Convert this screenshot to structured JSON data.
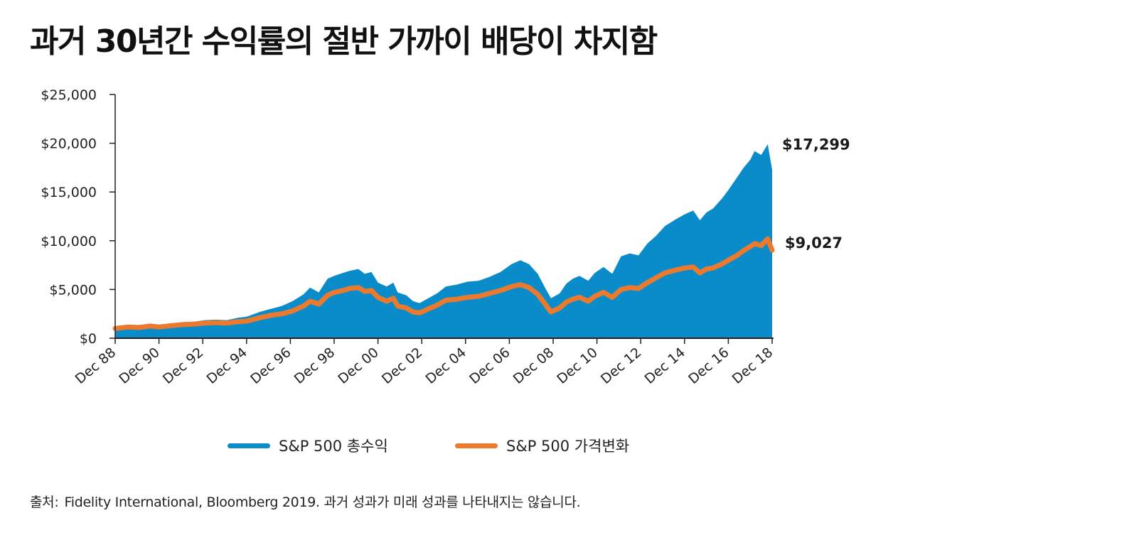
{
  "title": "과거 30년간 수익률의 절반 가까이 배당이 차지함",
  "source": {
    "label": "출처:",
    "text": "Fidelity International, Bloomberg 2019. 과거 성과가 미래 성과를 나타내지는 않습니다."
  },
  "colors": {
    "total": "#0a8ccb",
    "price": "#ec7a2e",
    "axis": "#222222",
    "text": "#222222"
  },
  "chart_data": {
    "type": "area",
    "title": "과거 30년간 수익률의 절반 가까이 배당이 차지함",
    "xlabel": "",
    "ylabel": "",
    "xlim": [
      1988.9,
      2018.9
    ],
    "ylim": [
      0,
      25000
    ],
    "grid": false,
    "legend_position": "bottom",
    "y_ticks": [
      0,
      5000,
      10000,
      15000,
      20000,
      25000
    ],
    "y_tick_labels": [
      "$0",
      "$5,000",
      "$10,000",
      "$15,000",
      "$20,000",
      "$25,000"
    ],
    "x_ticks": [
      1988.9,
      1990.9,
      1992.9,
      1994.9,
      1996.9,
      1998.9,
      2000.9,
      2002.9,
      2004.9,
      2006.9,
      2008.9,
      2010.9,
      2012.9,
      2014.9,
      2016.9,
      2018.9
    ],
    "x_tick_labels": [
      "Dec 88",
      "Dec 90",
      "Dec 92",
      "Dec 94",
      "Dec 96",
      "Dec 98",
      "Dec 00",
      "Dec 02",
      "Dec 04",
      "Dec 06",
      "Dec 08",
      "Dec 10",
      "Dec 12",
      "Dec 14",
      "Dec 16",
      "Dec 18"
    ],
    "series": [
      {
        "name": "S&P 500 총수익",
        "style": "area",
        "end_label": "$17,299",
        "x": [
          1988.9,
          1989.5,
          1990.0,
          1990.5,
          1990.9,
          1991.5,
          1992.0,
          1992.5,
          1993.0,
          1993.5,
          1994.0,
          1994.5,
          1994.9,
          1995.5,
          1996.0,
          1996.5,
          1997.0,
          1997.5,
          1997.8,
          1998.2,
          1998.6,
          1998.9,
          1999.3,
          1999.6,
          2000.0,
          2000.3,
          2000.6,
          2000.9,
          2001.3,
          2001.6,
          2001.8,
          2002.2,
          2002.5,
          2002.8,
          2003.2,
          2003.6,
          2004.0,
          2004.5,
          2005.0,
          2005.5,
          2006.0,
          2006.5,
          2007.0,
          2007.4,
          2007.8,
          2008.2,
          2008.5,
          2008.8,
          2009.2,
          2009.5,
          2009.8,
          2010.1,
          2010.5,
          2010.8,
          2011.2,
          2011.6,
          2012.0,
          2012.4,
          2012.8,
          2013.2,
          2013.6,
          2014.0,
          2014.5,
          2014.9,
          2015.3,
          2015.6,
          2015.9,
          2016.2,
          2016.6,
          2016.9,
          2017.3,
          2017.6,
          2017.9,
          2018.1,
          2018.4,
          2018.7,
          2018.9
        ],
        "values": [
          1000,
          1250,
          1200,
          1400,
          1300,
          1500,
          1650,
          1700,
          1850,
          1900,
          1850,
          2100,
          2200,
          2700,
          3000,
          3300,
          3800,
          4500,
          5200,
          4700,
          6100,
          6400,
          6700,
          6900,
          7100,
          6600,
          6800,
          5700,
          5300,
          5700,
          4700,
          4400,
          3800,
          3600,
          4100,
          4600,
          5300,
          5500,
          5800,
          5900,
          6300,
          6800,
          7600,
          8000,
          7600,
          6600,
          5300,
          4100,
          4600,
          5600,
          6100,
          6400,
          5900,
          6700,
          7300,
          6600,
          8400,
          8700,
          8500,
          9700,
          10500,
          11500,
          12200,
          12700,
          13100,
          12100,
          12900,
          13300,
          14300,
          15200,
          16500,
          17500,
          18300,
          19200,
          18800,
          19900,
          17299
        ]
      },
      {
        "name": "S&P 500 가격변화",
        "style": "line",
        "end_label": "$9,027",
        "x": [
          1988.9,
          1989.5,
          1990.0,
          1990.5,
          1990.9,
          1991.5,
          1992.0,
          1992.5,
          1993.0,
          1993.5,
          1994.0,
          1994.5,
          1994.9,
          1995.5,
          1996.0,
          1996.5,
          1997.0,
          1997.5,
          1997.8,
          1998.2,
          1998.6,
          1998.9,
          1999.3,
          1999.6,
          2000.0,
          2000.3,
          2000.6,
          2000.9,
          2001.3,
          2001.6,
          2001.8,
          2002.2,
          2002.5,
          2002.8,
          2003.2,
          2003.6,
          2004.0,
          2004.5,
          2005.0,
          2005.5,
          2006.0,
          2006.5,
          2007.0,
          2007.4,
          2007.8,
          2008.2,
          2008.5,
          2008.8,
          2009.2,
          2009.5,
          2009.8,
          2010.1,
          2010.5,
          2010.8,
          2011.2,
          2011.6,
          2012.0,
          2012.4,
          2012.8,
          2013.2,
          2013.6,
          2014.0,
          2014.5,
          2014.9,
          2015.3,
          2015.6,
          2015.9,
          2016.2,
          2016.6,
          2016.9,
          2017.3,
          2017.6,
          2017.9,
          2018.1,
          2018.4,
          2018.7,
          2018.9
        ],
        "values": [
          1000,
          1150,
          1100,
          1250,
          1150,
          1300,
          1400,
          1450,
          1550,
          1600,
          1550,
          1700,
          1750,
          2100,
          2350,
          2500,
          2800,
          3300,
          3800,
          3500,
          4400,
          4700,
          4900,
          5100,
          5200,
          4800,
          4900,
          4200,
          3800,
          4100,
          3300,
          3100,
          2700,
          2600,
          3000,
          3400,
          3900,
          4000,
          4200,
          4300,
          4600,
          4900,
          5300,
          5500,
          5200,
          4500,
          3600,
          2700,
          3100,
          3700,
          4000,
          4200,
          3800,
          4300,
          4700,
          4200,
          5000,
          5200,
          5100,
          5700,
          6200,
          6700,
          7000,
          7200,
          7300,
          6700,
          7100,
          7200,
          7600,
          8000,
          8500,
          9000,
          9400,
          9700,
          9500,
          10200,
          9027
        ]
      }
    ]
  }
}
